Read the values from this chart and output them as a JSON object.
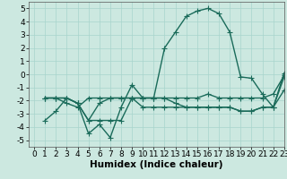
{
  "title": "",
  "xlabel": "Humidex (Indice chaleur)",
  "ylabel": "",
  "xlim": [
    -0.5,
    23
  ],
  "ylim": [
    -5.5,
    5.5
  ],
  "xticks": [
    0,
    1,
    2,
    3,
    4,
    5,
    6,
    7,
    8,
    9,
    10,
    11,
    12,
    13,
    14,
    15,
    16,
    17,
    18,
    19,
    20,
    21,
    22,
    23
  ],
  "yticks": [
    -5,
    -4,
    -3,
    -2,
    -1,
    0,
    1,
    2,
    3,
    4,
    5
  ],
  "bg_color": "#cce8e0",
  "line_color": "#1a6b5a",
  "line_width": 1.0,
  "marker": "+",
  "marker_size": 4,
  "lines": [
    [
      null,
      -3.5,
      -2.8,
      -1.8,
      -2.2,
      -4.5,
      -3.8,
      -4.8,
      -2.5,
      -0.8,
      -1.8,
      -1.8,
      2.0,
      3.2,
      4.4,
      4.8,
      5.0,
      4.6,
      3.2,
      -0.2,
      -0.3,
      -1.5,
      -2.5,
      -0.2
    ],
    [
      null,
      -1.8,
      -1.8,
      -2.2,
      -2.5,
      -1.8,
      -1.8,
      -1.8,
      -1.8,
      -1.8,
      -1.8,
      -1.8,
      -1.8,
      -1.8,
      -1.8,
      -1.8,
      -1.5,
      -1.8,
      -1.8,
      -1.8,
      -1.8,
      -1.8,
      -1.5,
      -0.1
    ],
    [
      null,
      -1.8,
      -1.8,
      -1.8,
      -2.2,
      -3.5,
      -2.2,
      -1.8,
      -1.8,
      -1.8,
      -1.8,
      -1.8,
      -1.8,
      -2.2,
      -2.5,
      -2.5,
      -2.5,
      -2.5,
      -2.5,
      -2.8,
      -2.8,
      -2.5,
      -2.5,
      0.1
    ],
    [
      null,
      -1.8,
      -1.8,
      -1.8,
      -2.2,
      -3.5,
      -3.5,
      -3.5,
      -3.5,
      -1.8,
      -2.5,
      -2.5,
      -2.5,
      -2.5,
      -2.5,
      -2.5,
      -2.5,
      -2.5,
      -2.5,
      -2.8,
      -2.8,
      -2.5,
      -2.5,
      -1.2
    ]
  ],
  "grid_color": "#a8d4cc",
  "tick_fontsize": 6.5,
  "xlabel_fontsize": 7.5
}
